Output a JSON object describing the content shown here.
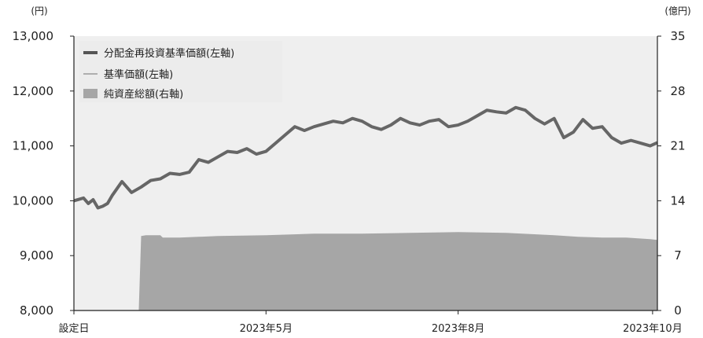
{
  "chart_data": {
    "type": "line",
    "left_axis": {
      "unit": "(円)",
      "ylim": [
        8000,
        13000
      ],
      "ticks": [
        "8,000",
        "9,000",
        "10,000",
        "11,000",
        "12,000",
        "13,000"
      ]
    },
    "right_axis": {
      "unit": "(億円)",
      "ylim": [
        0,
        35
      ],
      "ticks": [
        "0",
        "7",
        "14",
        "21",
        "28",
        "35"
      ]
    },
    "x_ticks": [
      {
        "label": "設定日",
        "x": 0
      },
      {
        "label": "2023年5月",
        "x": 80
      },
      {
        "label": "2023年8月",
        "x": 160
      },
      {
        "label": "2023年10月",
        "x": 241
      }
    ],
    "xlim": [
      0,
      243
    ],
    "grid": false,
    "legend": {
      "placement": "top-left",
      "entries": [
        {
          "label": "分配金再投資基準価額(左軸)",
          "color": "#555555",
          "kind": "line-thick"
        },
        {
          "label": "基準価額(左軸)",
          "color": "#9a9a9a",
          "kind": "line-thin"
        },
        {
          "label": "純資産総額(右軸)",
          "color": "#a6a6a6",
          "kind": "area"
        }
      ]
    },
    "series": [
      {
        "name": "分配金再投資基準価額(左軸)",
        "axis": "left",
        "color": "#666666",
        "x": [
          0,
          4,
          6,
          8,
          10,
          12,
          14,
          16,
          20,
          24,
          28,
          32,
          36,
          40,
          44,
          48,
          52,
          56,
          60,
          64,
          68,
          72,
          76,
          80,
          84,
          88,
          92,
          96,
          100,
          104,
          108,
          112,
          116,
          120,
          124,
          128,
          132,
          136,
          140,
          144,
          148,
          152,
          156,
          160,
          164,
          168,
          172,
          176,
          180,
          184,
          188,
          192,
          196,
          200,
          204,
          208,
          212,
          216,
          220,
          224,
          228,
          232,
          236,
          240,
          243
        ],
        "values": [
          10000,
          10050,
          9950,
          10020,
          9870,
          9900,
          9950,
          10100,
          10350,
          10150,
          10250,
          10370,
          10400,
          10500,
          10480,
          10520,
          10750,
          10700,
          10800,
          10900,
          10880,
          10950,
          10850,
          10900,
          11050,
          11200,
          11350,
          11280,
          11350,
          11400,
          11450,
          11420,
          11500,
          11450,
          11350,
          11300,
          11380,
          11500,
          11420,
          11380,
          11450,
          11480,
          11350,
          11380,
          11450,
          11550,
          11650,
          11620,
          11600,
          11700,
          11650,
          11500,
          11400,
          11500,
          11150,
          11250,
          11480,
          11320,
          11350,
          11150,
          11050,
          11100,
          11050,
          11000,
          11060
        ]
      },
      {
        "name": "基準価額(左軸)",
        "axis": "left",
        "color": "#9a9a9a",
        "x": [
          0,
          4,
          6,
          8,
          10,
          12,
          14,
          16,
          20,
          24,
          28,
          32,
          36,
          40,
          44,
          48,
          52,
          56,
          60,
          64,
          68,
          72,
          76,
          80,
          84,
          88,
          92,
          96,
          100,
          104,
          108,
          112,
          116,
          120,
          124,
          128,
          132,
          136,
          140,
          144,
          148,
          152,
          156,
          160,
          164,
          168,
          172,
          176,
          180,
          184,
          188,
          192,
          196,
          200,
          204,
          208,
          212,
          216,
          220,
          224,
          228,
          232,
          236,
          240,
          243
        ],
        "values": [
          10000,
          10050,
          9950,
          10020,
          9870,
          9900,
          9950,
          10100,
          10350,
          10150,
          10250,
          10370,
          10400,
          10500,
          10480,
          10520,
          10750,
          10700,
          10800,
          10900,
          10880,
          10950,
          10850,
          10900,
          11050,
          11200,
          11350,
          11280,
          11350,
          11400,
          11450,
          11420,
          11500,
          11450,
          11350,
          11300,
          11380,
          11500,
          11420,
          11380,
          11450,
          11480,
          11350,
          11380,
          11450,
          11550,
          11650,
          11620,
          11600,
          11700,
          11650,
          11500,
          11400,
          11500,
          11150,
          11250,
          11480,
          11320,
          11350,
          11150,
          11050,
          11100,
          11050,
          11000,
          11060
        ]
      },
      {
        "name": "純資産総額(右軸)",
        "axis": "right",
        "color": "#a6a6a6",
        "x": [
          0,
          27,
          28,
          30,
          36,
          37,
          44,
          60,
          80,
          100,
          120,
          140,
          160,
          180,
          200,
          210,
          220,
          230,
          240,
          243
        ],
        "values": [
          0,
          0,
          9.5,
          9.6,
          9.6,
          9.3,
          9.3,
          9.5,
          9.6,
          9.8,
          9.8,
          9.9,
          10.0,
          9.9,
          9.6,
          9.4,
          9.3,
          9.3,
          9.1,
          9.0
        ]
      }
    ]
  }
}
